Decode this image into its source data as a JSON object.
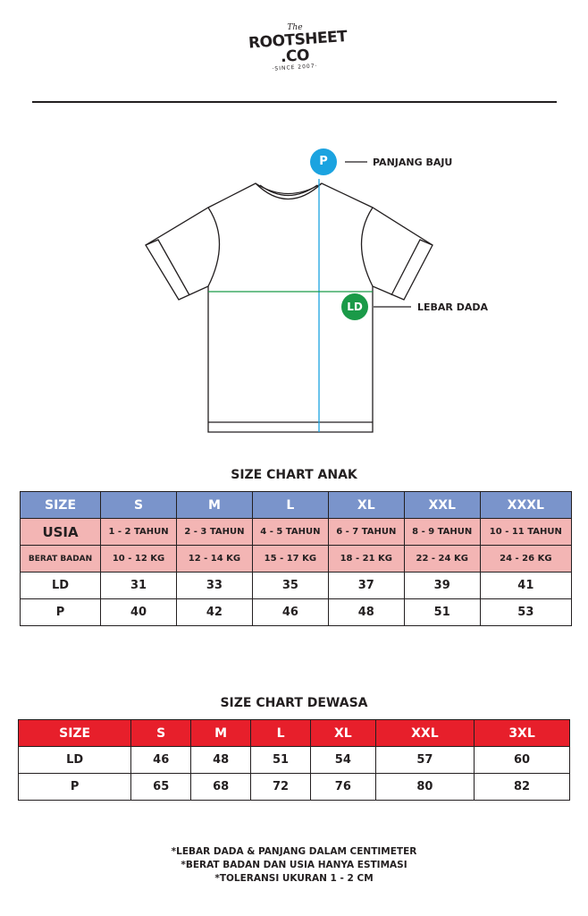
{
  "logo": {
    "the": "The",
    "line1": "ROOTSHEET",
    "line2": ".CO",
    "since": "·SINCE 2007·"
  },
  "diagram": {
    "p_badge": "P",
    "p_label": "PANJANG BAJU",
    "ld_badge": "LD",
    "ld_label": "LEBAR DADA",
    "p_color": "#1ba3e0",
    "ld_color": "#1a9a48"
  },
  "anak": {
    "title": "SIZE CHART ANAK",
    "header": [
      "SIZE",
      "S",
      "M",
      "L",
      "XL",
      "XXL",
      "XXXL"
    ],
    "usia": [
      "USIA",
      "1 - 2 TAHUN",
      "2 - 3 TAHUN",
      "4 - 5 TAHUN",
      "6 - 7 TAHUN",
      "8 - 9 TAHUN",
      "10 - 11 TAHUN"
    ],
    "berat": [
      "BERAT BADAN",
      "10 - 12 KG",
      "12 - 14 KG",
      "15 - 17 KG",
      "18 - 21 KG",
      "22 - 24 KG",
      "24 - 26 KG"
    ],
    "ld": [
      "LD",
      "31",
      "33",
      "35",
      "37",
      "39",
      "41"
    ],
    "p": [
      "P",
      "40",
      "42",
      "46",
      "48",
      "51",
      "53"
    ]
  },
  "dewasa": {
    "title": "SIZE CHART DEWASA",
    "header": [
      "SIZE",
      "S",
      "M",
      "L",
      "XL",
      "XXL",
      "3XL"
    ],
    "ld": [
      "LD",
      "46",
      "48",
      "51",
      "54",
      "57",
      "60"
    ],
    "p": [
      "P",
      "65",
      "68",
      "72",
      "76",
      "80",
      "82"
    ]
  },
  "notes": [
    "*LEBAR DADA & PANJANG DALAM CENTIMETER",
    "*BERAT BADAN DAN USIA HANYA ESTIMASI",
    "*TOLERANSI UKURAN 1 - 2 CM"
  ]
}
